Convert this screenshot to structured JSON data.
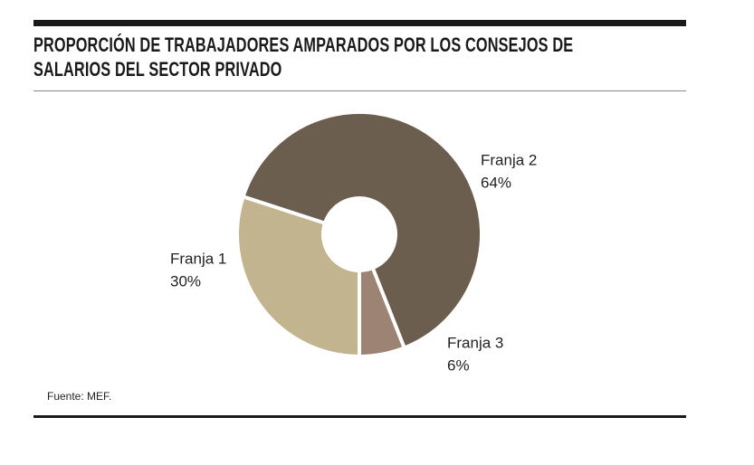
{
  "chart_data": {
    "type": "pie",
    "title": "PROPORCIÓN DE TRABAJADORES AMPARADOS POR LOS CONSEJOS DE SALARIOS DEL SECTOR PRIVADO",
    "categories": [
      "Franja 1",
      "Franja 2",
      "Franja 3"
    ],
    "values": [
      30,
      64,
      6
    ],
    "value_labels": [
      "30%",
      "64%",
      "6%"
    ],
    "colors": [
      "#c2b48f",
      "#6b5e4f",
      "#9c8374"
    ],
    "source": "Fuente: MEF."
  }
}
